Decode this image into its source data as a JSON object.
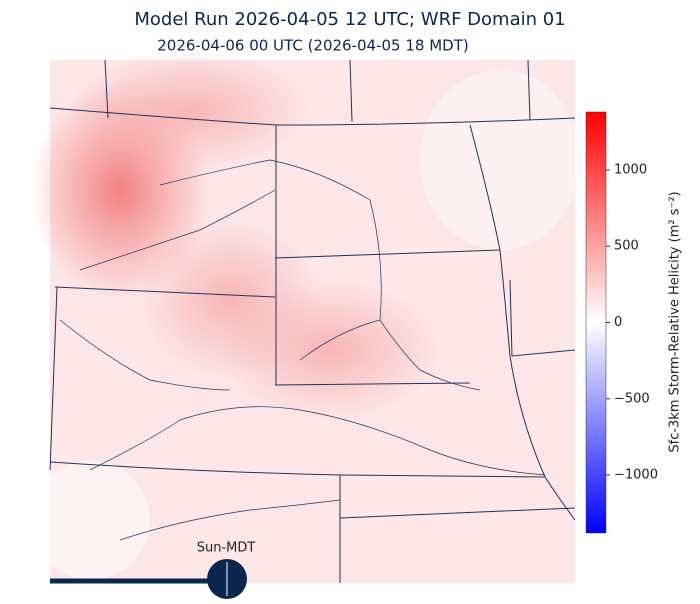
{
  "header": {
    "title": "Model Run 2026-04-05 12 UTC; WRF Domain 01",
    "subtitle": "2026-04-06 00 UTC  (2026-04-05 18 MDT)"
  },
  "colorbar": {
    "label": "Sfc-3km Storm-Relative Helicity (m² s⁻²)",
    "lim": [
      -1380,
      1380
    ],
    "ticks": [
      {
        "value": -1000,
        "label": "−1000"
      },
      {
        "value": -500,
        "label": "−500"
      },
      0,
      500,
      1000
    ]
  },
  "slider": {
    "label": "Sun-MDT"
  }
}
